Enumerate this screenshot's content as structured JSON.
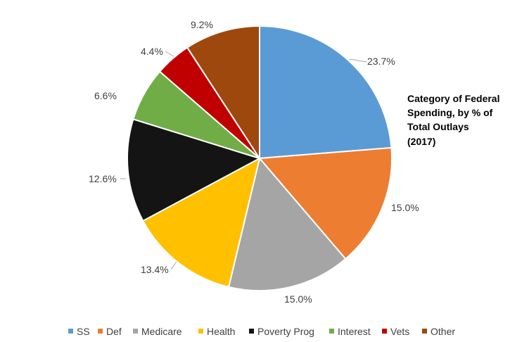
{
  "chart_data": {
    "type": "pie",
    "title_lines": [
      "Category of Federal",
      "Spending, by % of",
      "Total Outlays",
      "(2017)"
    ],
    "categories": [
      "SS",
      "Def",
      "Medicare",
      "Health",
      "Poverty Prog",
      "Interest",
      "Vets",
      "Other"
    ],
    "values": [
      23.7,
      15.0,
      15.0,
      13.4,
      12.6,
      6.6,
      4.4,
      9.2
    ],
    "labels": [
      "23.7%",
      "15.0%",
      "15.0%",
      "13.4%",
      "12.6%",
      "6.6%",
      "4.4%",
      "9.2%"
    ],
    "colors": [
      "#5b9bd5",
      "#ed7d31",
      "#a5a5a5",
      "#ffc000",
      "#141414",
      "#70ad47",
      "#c00000",
      "#9e480e"
    ],
    "legend_position": "bottom",
    "start": "12 o'clock, clockwise"
  }
}
